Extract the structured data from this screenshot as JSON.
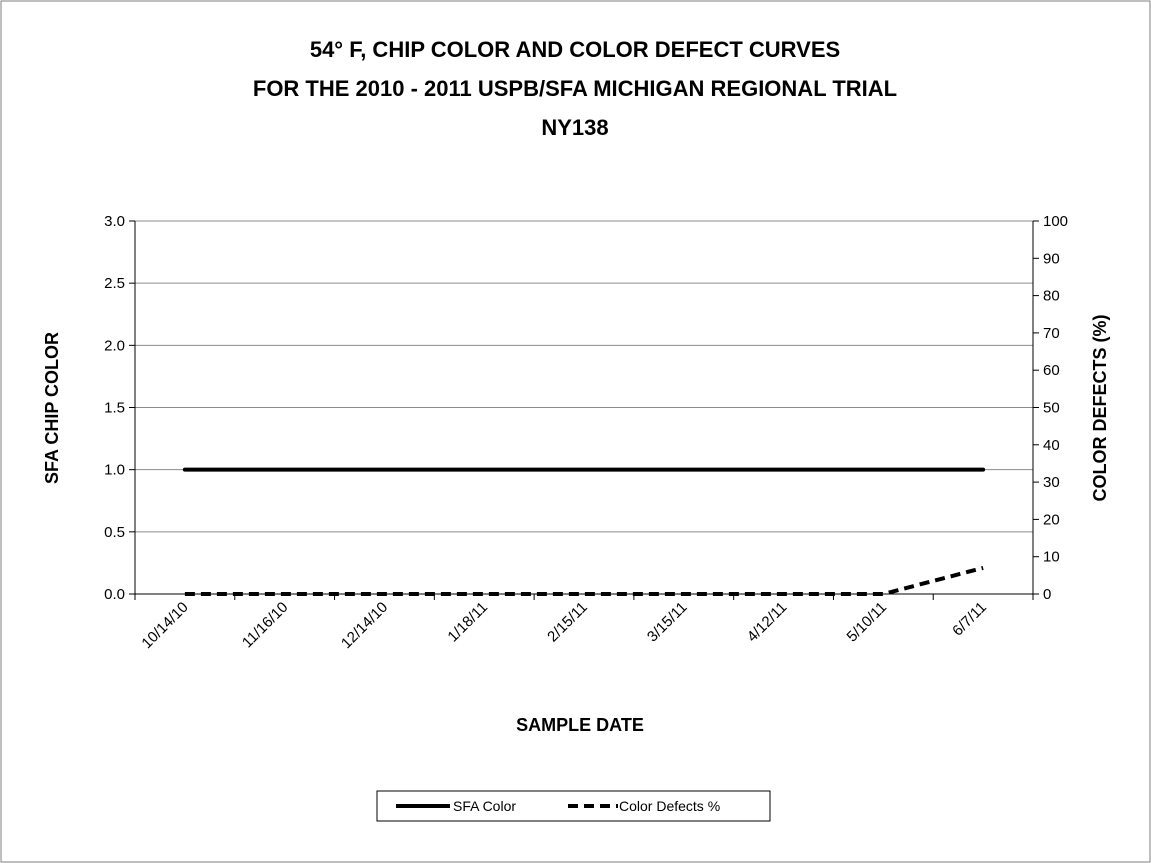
{
  "chart_data": {
    "type": "line",
    "title_lines": [
      "54° F, CHIP COLOR AND COLOR DEFECT CURVES",
      "FOR THE 2010 - 2011 USPB/SFA MICHIGAN REGIONAL TRIAL",
      "NY138"
    ],
    "xlabel": "SAMPLE DATE",
    "ylabel_left": "SFA CHIP COLOR",
    "ylabel_right": "COLOR DEFECTS (%)",
    "x_ticks": [
      "10/14/10",
      "11/16/10",
      "12/14/10",
      "1/18/11",
      "2/15/11",
      "3/15/11",
      "4/12/11",
      "5/10/11",
      "6/7/11"
    ],
    "ylim_left": [
      0,
      3
    ],
    "yticks_left": [
      "0.0",
      "0.5",
      "1.0",
      "1.5",
      "2.0",
      "2.5",
      "3.0"
    ],
    "ylim_right": [
      0,
      100
    ],
    "yticks_right": [
      "0",
      "10",
      "20",
      "30",
      "40",
      "50",
      "60",
      "70",
      "80",
      "90",
      "100"
    ],
    "grid": "horizontal",
    "legend_position": "bottom",
    "series": [
      {
        "name": "SFA Color",
        "axis": "left",
        "style": "solid",
        "color": "#000000",
        "x": [
          "10/14/10",
          "11/16/10",
          "12/14/10",
          "1/18/11",
          "2/15/11",
          "3/15/11",
          "4/12/11",
          "5/10/11",
          "6/7/11"
        ],
        "values": [
          1.0,
          1.0,
          1.0,
          1.0,
          1.0,
          1.0,
          1.0,
          1.0,
          1.0
        ]
      },
      {
        "name": "Color Defects %",
        "axis": "right",
        "style": "dashed",
        "color": "#000000",
        "x": [
          "10/14/10",
          "11/16/10",
          "12/14/10",
          "1/18/11",
          "2/15/11",
          "3/15/11",
          "4/12/11",
          "5/10/11",
          "6/7/11"
        ],
        "values": [
          0,
          0,
          0,
          0,
          0,
          0,
          0,
          0,
          7
        ]
      }
    ]
  }
}
